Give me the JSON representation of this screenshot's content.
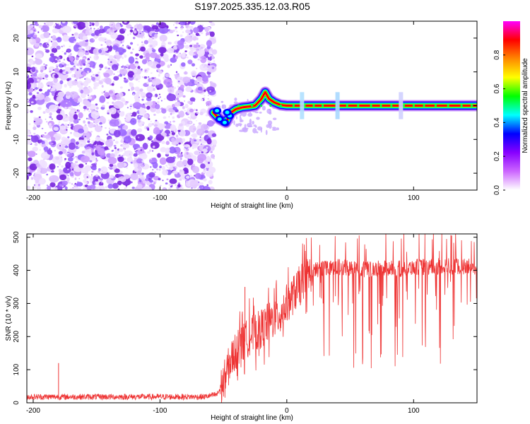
{
  "title": "S197.2025.335.12.03.R05",
  "chart_data": [
    {
      "type": "heatmap",
      "title": "",
      "xlabel": "Height of straight line (km)",
      "ylabel": "Frequency (Hz)",
      "xlim": [
        -205,
        150
      ],
      "ylim": [
        -25,
        25
      ],
      "x_ticks": [
        -200,
        -100,
        0,
        100
      ],
      "y_ticks": [
        -20,
        -10,
        0,
        10,
        20
      ],
      "colorbar": {
        "label": "Normalized spectral amplitude",
        "range": [
          0,
          1
        ],
        "ticks": [
          0.0,
          0.2,
          0.4,
          0.6,
          0.8
        ],
        "colors": [
          "#ffffff",
          "#cc66ff",
          "#8800ff",
          "#0000ff",
          "#00ffff",
          "#00ff00",
          "#ffff00",
          "#ff8800",
          "#ff0000",
          "#ff00ff"
        ]
      },
      "noise_region": {
        "x_range": [
          -205,
          -57
        ],
        "freq_range": [
          -25,
          25
        ],
        "typical_amplitude": 0.15
      },
      "ridge": {
        "x": [
          -58,
          -53,
          -48,
          -44,
          -40,
          -35,
          -30,
          -25,
          -20,
          -17,
          -14,
          -10,
          -5,
          0,
          10,
          20,
          40,
          60,
          80,
          100,
          150
        ],
        "frequency_hz": [
          -2,
          -4,
          -5,
          -2,
          -1,
          -0.5,
          -0.3,
          0,
          2,
          4,
          2,
          1,
          0.2,
          0,
          0,
          0,
          0,
          0,
          0,
          0,
          0
        ],
        "amplitude": [
          0.3,
          0.35,
          0.35,
          0.4,
          0.55,
          0.6,
          0.65,
          0.7,
          0.6,
          0.55,
          0.6,
          0.7,
          0.8,
          0.85,
          0.85,
          0.85,
          0.85,
          0.85,
          0.85,
          0.85,
          0.85
        ]
      }
    },
    {
      "type": "line",
      "title": "",
      "xlabel": "Height of straight line (km)",
      "ylabel": "SNR (10 * v/v)",
      "xlim": [
        -205,
        150
      ],
      "ylim": [
        0,
        510
      ],
      "x_ticks": [
        -200,
        -100,
        0,
        100
      ],
      "y_ticks": [
        0,
        100,
        200,
        300,
        400,
        500
      ],
      "series": [
        {
          "name": "SNR",
          "color": "#ee3333",
          "x": [
            -205,
            -180,
            -150,
            -120,
            -90,
            -65,
            -55,
            -50,
            -45,
            -40,
            -35,
            -30,
            -25,
            -20,
            -15,
            -10,
            -5,
            0,
            5,
            10,
            15,
            20,
            25,
            30,
            35,
            40,
            50,
            60,
            70,
            80,
            90,
            100,
            110,
            120,
            130,
            140,
            150
          ],
          "values": [
            18,
            18,
            18,
            18,
            18,
            18,
            25,
            60,
            120,
            160,
            175,
            200,
            210,
            225,
            240,
            255,
            270,
            300,
            325,
            355,
            380,
            395,
            405,
            410,
            412,
            410,
            405,
            402,
            405,
            405,
            405,
            410,
            410,
            412,
            412,
            412,
            410
          ]
        }
      ],
      "notable_spikes": [
        {
          "x": -180,
          "value": 120
        },
        {
          "x": -33,
          "value": 350
        },
        {
          "x": 130,
          "value": 505
        }
      ]
    }
  ]
}
